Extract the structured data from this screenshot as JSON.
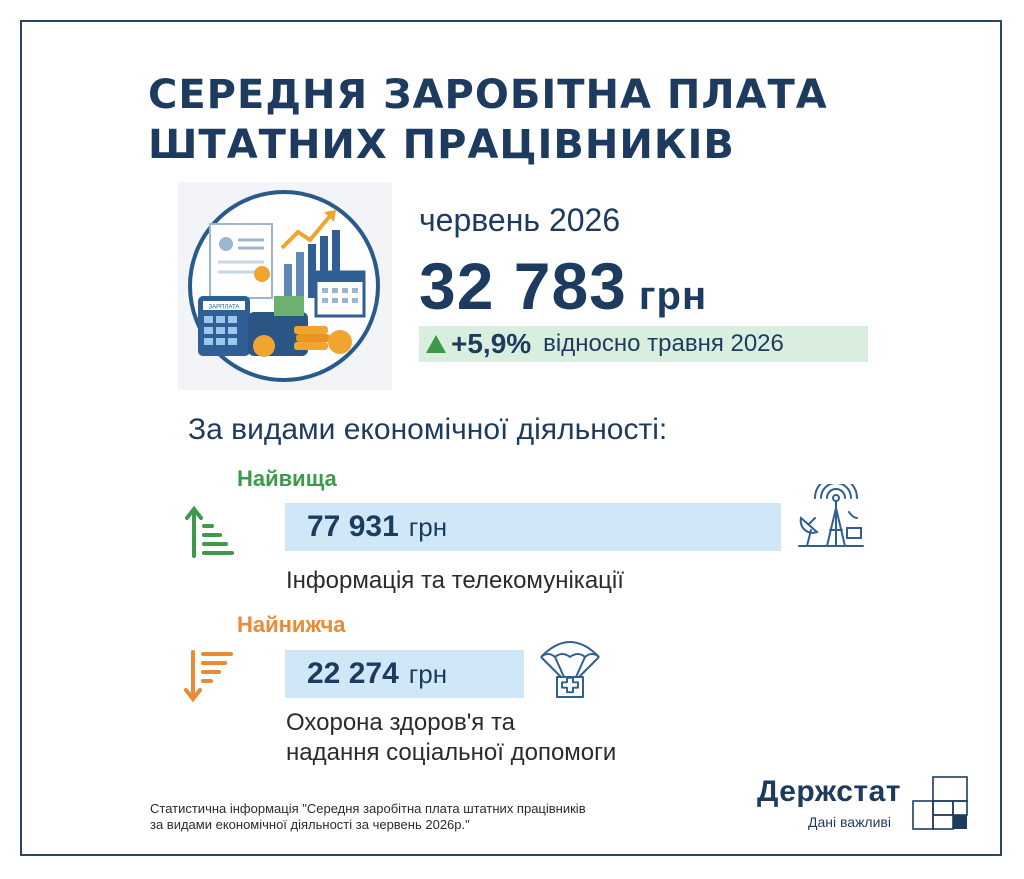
{
  "header": {
    "title_line1": "СЕРЕДНЯ ЗАРОБІТНА ПЛАТА",
    "title_line2": "ШТАТНИХ ПРАЦІВНИКІВ"
  },
  "summary": {
    "period": "червень 2026",
    "value": "32 783",
    "unit": "грн",
    "change_pct": "+5,9%",
    "change_text": "відносно травня 2026",
    "hero_icon_label": "ЗАРПЛАТА"
  },
  "breakdown": {
    "title": "За видами економічної діяльності:",
    "highest": {
      "label": "Найвища",
      "value": "77 931",
      "unit": "грн",
      "sector": "Інформація та телекомунікації"
    },
    "lowest": {
      "label": "Найнижча",
      "value": "22 274",
      "unit": "грн",
      "sector_line1": "Охорона здоров'я та",
      "sector_line2": "надання соціальної допомоги"
    }
  },
  "footer": {
    "note_line1": "Статистична інформація \"Середня заробітна плата штатних працівників",
    "note_line2": "за видами економічної діяльності за червень 2026р.\"",
    "brand": "Держстат",
    "slogan": "Дані важливі"
  },
  "icons": {
    "hero": "salary-finance-icon",
    "highest_arrow": "sort-ascending-icon",
    "lowest_arrow": "sort-descending-icon",
    "telecom": "telecom-tower-icon",
    "health": "medical-aid-parachute-icon",
    "logo": "derzhstat-logo-icon"
  },
  "colors": {
    "primary": "#1d3b5e",
    "highest": "#3d9a4b",
    "lowest": "#e98a34",
    "value_box": "#cfe7f6",
    "change_box": "#d9eedf"
  }
}
